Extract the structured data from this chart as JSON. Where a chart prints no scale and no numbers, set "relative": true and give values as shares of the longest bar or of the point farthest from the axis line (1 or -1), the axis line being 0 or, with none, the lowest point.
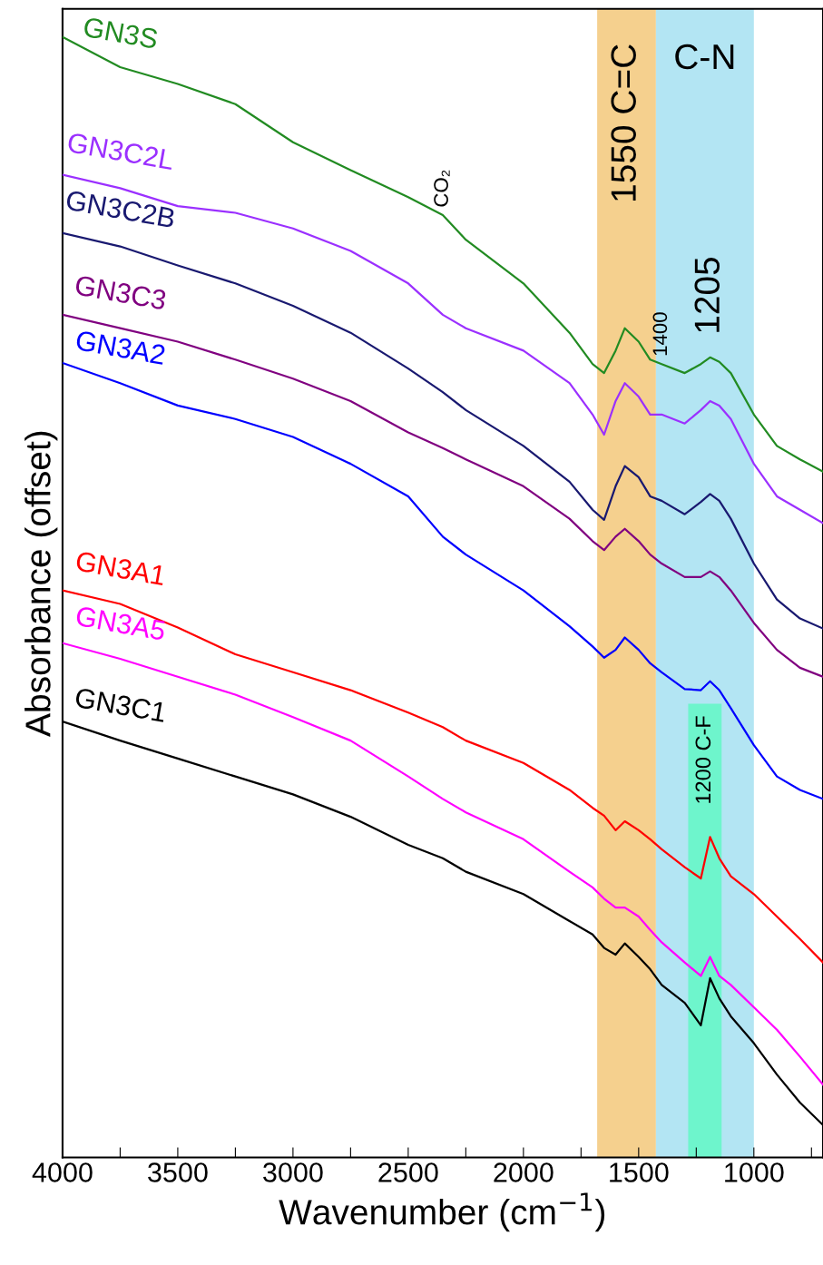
{
  "chart_data": {
    "type": "line",
    "relative": true,
    "xlabel": "Wavenumber (cm$^{−1}$)",
    "ylabel": "Absorbance (offset)",
    "x": [
      4000,
      3750,
      3500,
      3250,
      3000,
      2750,
      2500,
      2350,
      2250,
      2000,
      1800,
      1700,
      1650,
      1600,
      1560,
      1500,
      1450,
      1400,
      1300,
      1230,
      1190,
      1150,
      1100,
      1000,
      900,
      800,
      700
    ],
    "xlim": [
      4000,
      700
    ],
    "xticks": [
      4000,
      {
        "value": 3750,
        "label": null
      },
      3500,
      {
        "value": 3250,
        "label": null
      },
      3000,
      {
        "value": 2750,
        "label": null
      },
      2500,
      {
        "value": 2250,
        "label": null
      },
      2000,
      {
        "value": 1750,
        "label": null
      },
      1500,
      {
        "value": 1250,
        "label": null
      },
      1000,
      {
        "value": 750,
        "label": null
      }
    ],
    "series": [
      {
        "name": "GN3S",
        "color": "#228b22",
        "values": [
          1.0,
          0.973,
          0.958,
          0.94,
          0.906,
          0.881,
          0.857,
          0.841,
          0.819,
          0.78,
          0.736,
          0.708,
          0.7,
          0.72,
          0.74,
          0.728,
          0.712,
          0.708,
          0.7,
          0.708,
          0.714,
          0.71,
          0.7,
          0.663,
          0.635,
          0.623,
          0.612
        ]
      },
      {
        "name": "GN3C2L",
        "color": "#9b30ff",
        "values": [
          0.877,
          0.865,
          0.849,
          0.843,
          0.829,
          0.809,
          0.78,
          0.752,
          0.74,
          0.72,
          0.691,
          0.663,
          0.645,
          0.675,
          0.691,
          0.679,
          0.663,
          0.663,
          0.655,
          0.667,
          0.675,
          0.671,
          0.659,
          0.619,
          0.59,
          0.578,
          0.566
        ]
      },
      {
        "name": "GN3C2B",
        "color": "#191970",
        "values": [
          0.825,
          0.813,
          0.796,
          0.78,
          0.76,
          0.736,
          0.704,
          0.683,
          0.667,
          0.635,
          0.603,
          0.578,
          0.569,
          0.599,
          0.617,
          0.607,
          0.59,
          0.586,
          0.574,
          0.585,
          0.592,
          0.586,
          0.57,
          0.53,
          0.498,
          0.481,
          0.472
        ]
      },
      {
        "name": "GN3C3",
        "color": "#800080",
        "values": [
          0.752,
          0.74,
          0.728,
          0.712,
          0.695,
          0.675,
          0.647,
          0.633,
          0.623,
          0.599,
          0.57,
          0.55,
          0.542,
          0.554,
          0.561,
          0.55,
          0.538,
          0.53,
          0.518,
          0.518,
          0.523,
          0.518,
          0.506,
          0.477,
          0.453,
          0.437,
          0.429
        ]
      },
      {
        "name": "GN3A2",
        "color": "#0000ff",
        "values": [
          0.709,
          0.691,
          0.671,
          0.659,
          0.643,
          0.619,
          0.59,
          0.554,
          0.538,
          0.506,
          0.474,
          0.456,
          0.446,
          0.453,
          0.464,
          0.453,
          0.441,
          0.433,
          0.418,
          0.417,
          0.425,
          0.417,
          0.401,
          0.368,
          0.34,
          0.328,
          0.32
        ]
      },
      {
        "name": "GN3A1",
        "color": "#ff0000",
        "values": [
          0.506,
          0.494,
          0.473,
          0.449,
          0.433,
          0.417,
          0.397,
          0.384,
          0.372,
          0.352,
          0.328,
          0.312,
          0.305,
          0.292,
          0.3,
          0.292,
          0.284,
          0.275,
          0.259,
          0.249,
          0.286,
          0.267,
          0.251,
          0.235,
          0.215,
          0.195,
          0.174
        ]
      },
      {
        "name": "GN3A5",
        "color": "#ff00ff",
        "values": [
          0.459,
          0.445,
          0.429,
          0.413,
          0.393,
          0.372,
          0.34,
          0.32,
          0.308,
          0.284,
          0.255,
          0.241,
          0.231,
          0.223,
          0.223,
          0.215,
          0.203,
          0.192,
          0.174,
          0.162,
          0.179,
          0.162,
          0.154,
          0.134,
          0.114,
          0.09,
          0.065
        ]
      },
      {
        "name": "GN3C1",
        "color": "#000000",
        "values": [
          0.389,
          0.372,
          0.356,
          0.34,
          0.324,
          0.304,
          0.279,
          0.267,
          0.255,
          0.235,
          0.211,
          0.199,
          0.187,
          0.181,
          0.191,
          0.179,
          0.168,
          0.154,
          0.138,
          0.118,
          0.16,
          0.142,
          0.126,
          0.102,
          0.074,
          0.049,
          0.029
        ]
      }
    ],
    "bands": [
      {
        "axis": "x",
        "from": 1680,
        "to": 1425,
        "label": "1550 C=C",
        "color": "#f5d08e"
      },
      {
        "axis": "x",
        "from": 1425,
        "to": 1000,
        "label": "C-N",
        "color": "#b3e5f3"
      },
      {
        "axis": "x",
        "from": 1285,
        "to": 1140,
        "label": "1200 C-F",
        "color": "#6ef5cc"
      }
    ],
    "annotations": [
      {
        "text": "CO₂",
        "x": 2350,
        "y": 0.841
      },
      {
        "text": "1400",
        "x": 1400,
        "y": 0.708
      },
      {
        "text": "1205",
        "x": 1190,
        "y": 0.714
      }
    ],
    "grid": false,
    "legend": false
  }
}
